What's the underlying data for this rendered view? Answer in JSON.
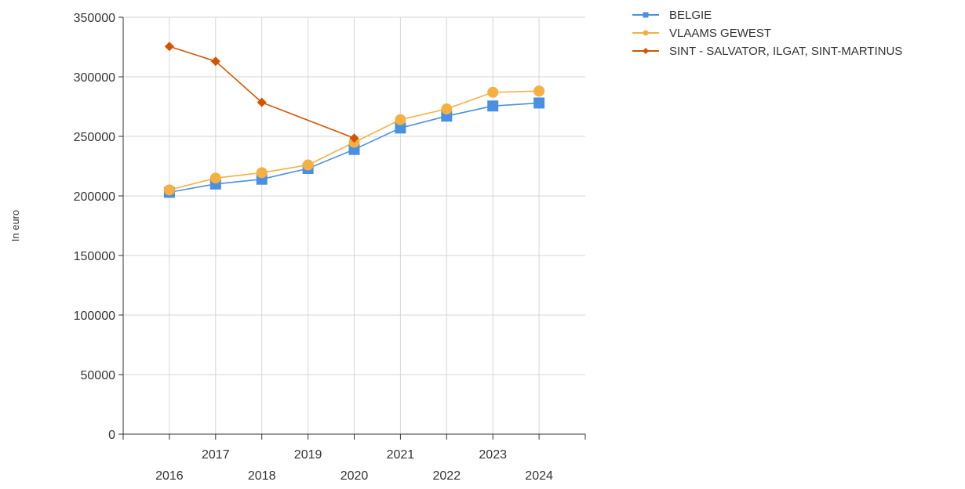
{
  "chart_data": {
    "type": "line",
    "title": "",
    "xlabel": "",
    "ylabel": "In euro",
    "categories": [
      "2016",
      "2017",
      "2018",
      "2019",
      "2020",
      "2021",
      "2022",
      "2023",
      "2024"
    ],
    "ylim": [
      0,
      350000
    ],
    "yticks": [
      "0",
      "50000",
      "100000",
      "150000",
      "200000",
      "250000",
      "300000",
      "350000"
    ],
    "grid": true,
    "legend_position": "top-right",
    "series": [
      {
        "name": "BELGIE",
        "color": "#4a90e2",
        "marker": "square",
        "values": [
          203000,
          210000,
          214000,
          223000,
          239000,
          257000,
          267000,
          275500,
          278000
        ]
      },
      {
        "name": "VLAAMS GEWEST",
        "color": "#f5b041",
        "marker": "circle",
        "values": [
          205000,
          215000,
          219500,
          226000,
          245000,
          264000,
          273000,
          287000,
          288000
        ]
      },
      {
        "name": "SINT - SALVATOR, ILGAT, SINT-MARTINUS",
        "color": "#d35400",
        "marker": "diamond",
        "values": [
          325500,
          313000,
          278500,
          null,
          248500,
          null,
          null,
          null,
          null
        ]
      }
    ]
  }
}
